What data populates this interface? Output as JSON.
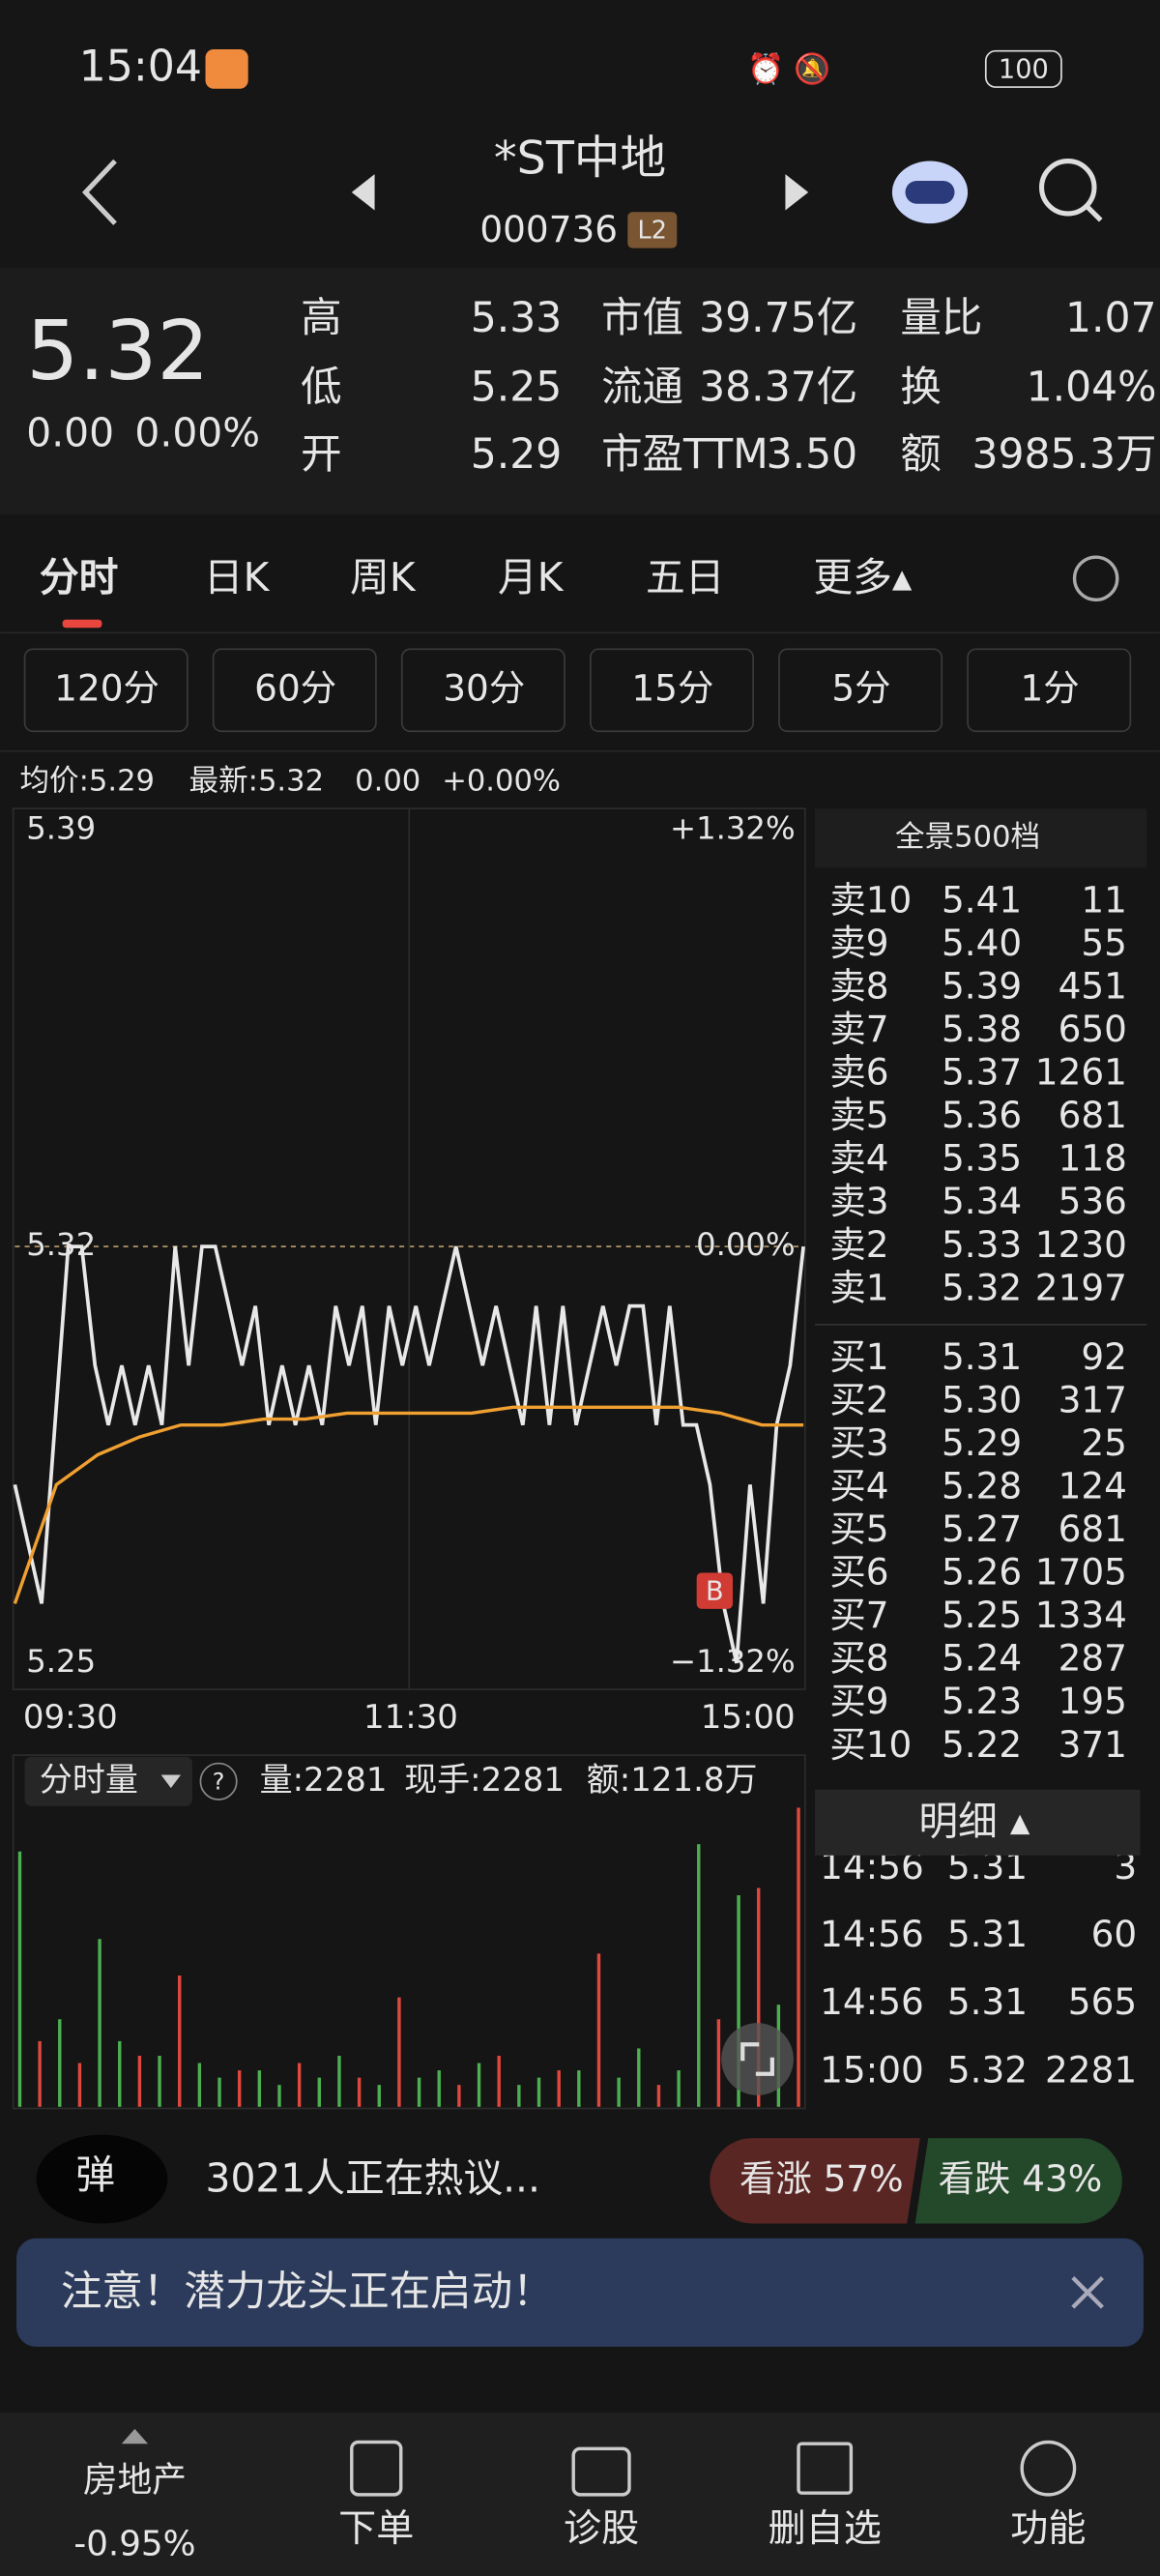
{
  "status_bar": {
    "time": "15:04",
    "battery": "100"
  },
  "header": {
    "title": "*ST中地",
    "code": "000736",
    "badge": "L2"
  },
  "quote": {
    "price": "5.32",
    "change": "0.00",
    "change_pct": "0.00%",
    "stats": [
      {
        "label": "高",
        "value": "5.33"
      },
      {
        "label": "市值",
        "value": "39.75亿"
      },
      {
        "label": "量比",
        "value": "1.07"
      },
      {
        "label": "低",
        "value": "5.25"
      },
      {
        "label": "流通",
        "value": "38.37亿"
      },
      {
        "label": "换",
        "value": "1.04%"
      },
      {
        "label": "开",
        "value": "5.29"
      },
      {
        "label": "市盈TTM",
        "value": "3.50"
      },
      {
        "label": "额",
        "value": "3985.3万"
      }
    ]
  },
  "tabs": [
    "分时",
    "日K",
    "周K",
    "月K",
    "五日",
    "更多▴"
  ],
  "periods": [
    "120分",
    "60分",
    "30分",
    "15分",
    "5分",
    "1分"
  ],
  "info_line": {
    "avg": "均价:5.29",
    "latest": "最新:5.32",
    "change": "0.00",
    "pct": "+0.00%"
  },
  "chart_data": [
    {
      "type": "line",
      "ylim": [
        5.25,
        5.39
      ],
      "yticks": [
        5.25,
        5.32,
        5.39
      ],
      "y2lim": [
        -1.32,
        1.32
      ],
      "y2ticks": [
        {
          "value": -1.32,
          "label": "−1.32%"
        },
        {
          "value": 0,
          "label": "0.00%"
        },
        {
          "value": 1.32,
          "label": "+1.32%"
        }
      ],
      "x_labels": [
        "09:30",
        "11:30",
        "15:00"
      ],
      "buy_marker": "B",
      "series": [
        {
          "color": "#e8e8e8",
          "values": [
            5.28,
            5.27,
            5.26,
            5.29,
            5.32,
            5.32,
            5.3,
            5.29,
            5.3,
            5.29,
            5.3,
            5.29,
            5.32,
            5.3,
            5.32,
            5.32,
            5.31,
            5.3,
            5.31,
            5.29,
            5.3,
            5.29,
            5.3,
            5.29,
            5.31,
            5.3,
            5.31,
            5.29,
            5.31,
            5.3,
            5.31,
            5.3,
            5.31,
            5.32,
            5.31,
            5.3,
            5.31,
            5.3,
            5.29,
            5.31,
            5.29,
            5.31,
            5.29,
            5.3,
            5.31,
            5.3,
            5.31,
            5.31,
            5.29,
            5.31,
            5.29,
            5.29,
            5.28,
            5.26,
            5.25,
            5.28,
            5.26,
            5.29,
            5.3,
            5.32
          ]
        },
        {
          "color": "#f0a030",
          "values": [
            5.26,
            5.28,
            5.285,
            5.288,
            5.29,
            5.29,
            5.291,
            5.291,
            5.292,
            5.292,
            5.292,
            5.292,
            5.293,
            5.293,
            5.293,
            5.293,
            5.293,
            5.292,
            5.29,
            5.29
          ]
        }
      ]
    },
    {
      "type": "volume",
      "title": "分时量",
      "volume": "量:2281",
      "hand": "现手:2281",
      "amount": "额:121.8万",
      "series": [
        {
          "color": "#e0483e",
          "values": [
            null,
            900,
            null,
            600,
            null,
            null,
            700,
            null,
            1800,
            null,
            null,
            500,
            null,
            null,
            600,
            null,
            null,
            400,
            null,
            1500,
            null,
            null,
            300,
            null,
            700,
            null,
            null,
            500,
            null,
            2100,
            null,
            null,
            300,
            null,
            null,
            1200,
            null,
            3000,
            null,
            4100
          ]
        },
        {
          "color": "#4caf50",
          "values": [
            3500,
            null,
            1200,
            null,
            2300,
            900,
            null,
            700,
            null,
            600,
            400,
            null,
            500,
            300,
            null,
            400,
            700,
            null,
            300,
            null,
            400,
            500,
            null,
            600,
            null,
            300,
            400,
            null,
            500,
            null,
            400,
            800,
            null,
            500,
            3600,
            null,
            2900,
            null,
            1400,
            null
          ]
        }
      ]
    }
  ],
  "order_book": {
    "title": "全景500档",
    "asks": [
      [
        "卖10",
        "5.41",
        "11"
      ],
      [
        "卖9",
        "5.40",
        "55"
      ],
      [
        "卖8",
        "5.39",
        "451"
      ],
      [
        "卖7",
        "5.38",
        "650"
      ],
      [
        "卖6",
        "5.37",
        "1261"
      ],
      [
        "卖5",
        "5.36",
        "681"
      ],
      [
        "卖4",
        "5.35",
        "118"
      ],
      [
        "卖3",
        "5.34",
        "536"
      ],
      [
        "卖2",
        "5.33",
        "1230"
      ],
      [
        "卖1",
        "5.32",
        "2197"
      ]
    ],
    "bids": [
      [
        "买1",
        "5.31",
        "92"
      ],
      [
        "买2",
        "5.30",
        "317"
      ],
      [
        "买3",
        "5.29",
        "25"
      ],
      [
        "买4",
        "5.28",
        "124"
      ],
      [
        "买5",
        "5.27",
        "681"
      ],
      [
        "买6",
        "5.26",
        "1705"
      ],
      [
        "买7",
        "5.25",
        "1334"
      ],
      [
        "买8",
        "5.24",
        "287"
      ],
      [
        "买9",
        "5.23",
        "195"
      ],
      [
        "买10",
        "5.22",
        "371"
      ]
    ]
  },
  "details": {
    "title": "明细 ▴",
    "rows": [
      [
        "14:56",
        "5.31",
        "3"
      ],
      [
        "14:56",
        "5.31",
        "60"
      ],
      [
        "14:56",
        "5.31",
        "565"
      ],
      [
        "15:00",
        "5.32",
        "2281"
      ]
    ]
  },
  "discussion": {
    "icon": "弹",
    "text": "3021人正在热议...",
    "bull": "看涨 57%",
    "bear": "看跌 43%"
  },
  "notice": {
    "text": "注意！潜力龙头正在启动！"
  },
  "nav": {
    "sector": "房地产",
    "sector_change": "-0.95%",
    "items": [
      "下单",
      "诊股",
      "删自选",
      "功能"
    ]
  }
}
